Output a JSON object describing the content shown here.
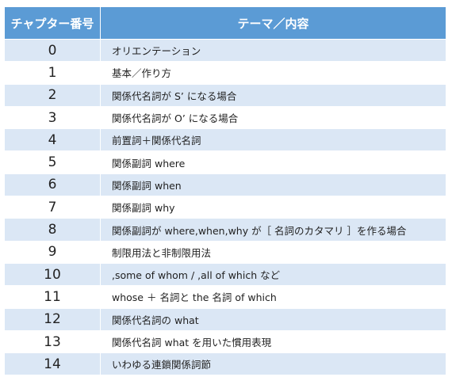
{
  "table": {
    "header": [
      "チャプター番号",
      "テーマ／内容"
    ],
    "rows": [
      [
        "0",
        "オリエンテーション"
      ],
      [
        "1",
        "基本／作り方"
      ],
      [
        "2",
        "関係代名詞が S’ になる場合"
      ],
      [
        "3",
        "関係代名詞が O’ になる場合"
      ],
      [
        "4",
        "前置詞＋関係代名詞"
      ],
      [
        "5",
        "関係副詞 where"
      ],
      [
        "6",
        "関係副詞 when"
      ],
      [
        "7",
        "関係副詞 why"
      ],
      [
        "8",
        "関係副詞が where,when,why が［ 名詞のカタマリ ］を作る場合"
      ],
      [
        "9",
        "制限用法と非制限用法"
      ],
      [
        "10",
        ",some of whom / ,all of which など"
      ],
      [
        "11",
        "whose ＋ 名詞と the 名詞 of which"
      ],
      [
        "12",
        "関係代名詞の what"
      ],
      [
        "13",
        "関係代名詞 what を用いた慣用表現"
      ],
      [
        "14",
        "いわゆる連鎖関係詞節"
      ]
    ]
  }
}
